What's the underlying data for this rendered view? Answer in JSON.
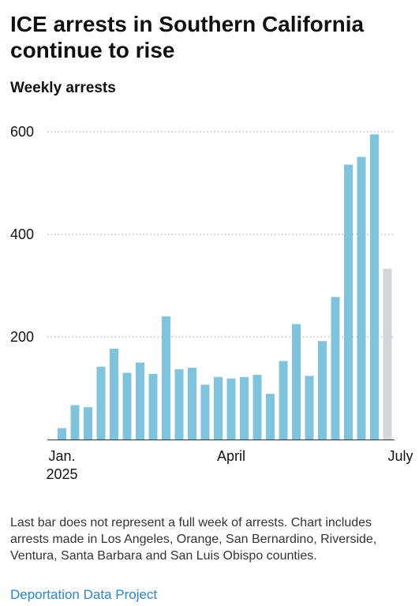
{
  "title": "ICE arrests in Southern California continue to rise",
  "subtitle": "Weekly arrests",
  "footnote": "Last bar does not represent a full week of arrests. Chart includes arrests made in Los Angeles, Orange, San Bernardino, Riverside, Ventura, Santa Barbara and San Luis Obispo counties.",
  "source": "Deportation Data Project",
  "colors": {
    "bar": "#7fc4df",
    "partial_bar": "#d3d6da",
    "gridline": "#999999",
    "axis": "#333333"
  },
  "chart_data": {
    "type": "bar",
    "title": "ICE arrests in Southern California continue to rise",
    "ylabel": "Weekly arrests",
    "ylim": [
      0,
      600
    ],
    "yticks": [
      200,
      400,
      600
    ],
    "grid": "horizontal dotted",
    "xtick_labels": [
      {
        "lines": [
          "Jan.",
          "2025"
        ],
        "at_bar": 0
      },
      {
        "lines": [
          "April"
        ],
        "at_bar": 13
      },
      {
        "lines": [
          "July"
        ],
        "at_bar": 26
      }
    ],
    "values": [
      22,
      67,
      63,
      142,
      177,
      130,
      150,
      128,
      240,
      137,
      140,
      107,
      122,
      119,
      122,
      126,
      89,
      153,
      225,
      124,
      192,
      278,
      536,
      551,
      595,
      333
    ],
    "partial_last_bar": true
  }
}
